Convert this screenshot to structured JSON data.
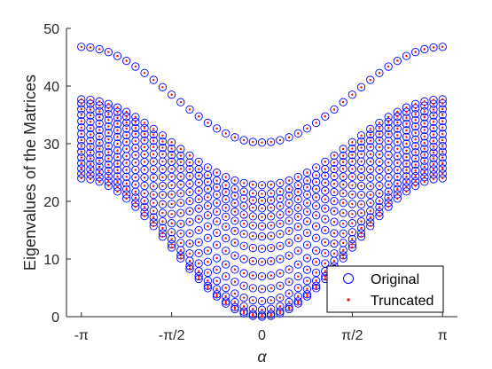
{
  "chart_data": {
    "type": "scatter",
    "title": "",
    "xlabel": "α",
    "ylabel": "Eigenvalues of the Matrices",
    "xlim": [
      -3.4,
      3.4
    ],
    "ylim": [
      0,
      50
    ],
    "x_ticks": [
      {
        "value": -3.14159,
        "label": "-π"
      },
      {
        "value": -1.5708,
        "label": "-π/2"
      },
      {
        "value": 0,
        "label": "0"
      },
      {
        "value": 1.5708,
        "label": "π/2"
      },
      {
        "value": 3.14159,
        "label": "π"
      }
    ],
    "y_ticks": [
      0,
      10,
      20,
      30,
      40,
      50
    ],
    "grid": false,
    "legend_position": "bottom-right",
    "alpha_samples": 41,
    "series": [
      {
        "name": "Original",
        "marker": "open-circle",
        "color": "#0000ff"
      },
      {
        "name": "Truncated",
        "marker": "dot",
        "color": "#ff0000"
      }
    ],
    "band_groups": [
      {
        "description_free": true,
        "count": 1,
        "y_at_zero": [
          30.2
        ],
        "y_at_pi": [
          46.8
        ]
      },
      {
        "count": 15,
        "y_at_zero": [
          0.0,
          0.3,
          1.2,
          2.7,
          4.8,
          7.0,
          9.5,
          11.8,
          13.9,
          15.7,
          17.3,
          18.8,
          20.1,
          21.3,
          22.8
        ],
        "y_at_pi": [
          24.0,
          24.8,
          25.7,
          26.6,
          27.6,
          28.6,
          29.6,
          30.6,
          31.7,
          32.8,
          33.9,
          35.0,
          36.0,
          37.0,
          37.7
        ]
      }
    ]
  }
}
